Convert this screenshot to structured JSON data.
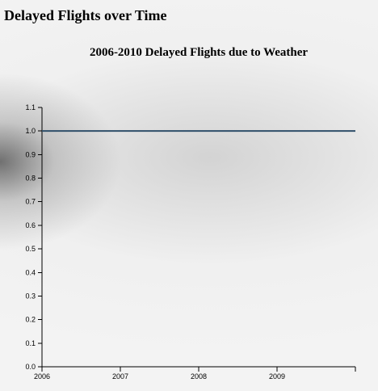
{
  "page": {
    "heading": "Delayed Flights over Time"
  },
  "chart_data": {
    "type": "line",
    "title": "2006-2010 Delayed Flights due to Weather",
    "xlabel": "",
    "ylabel": "",
    "x": [
      "2006",
      "2007",
      "2008",
      "2009",
      "2010"
    ],
    "x_tick_labels": [
      "2006",
      "2007",
      "2008",
      "2009"
    ],
    "series": [
      {
        "values": [
          1.0,
          1.0,
          1.0,
          1.0,
          1.0
        ],
        "color": "#2f4f6a"
      }
    ],
    "ylim": [
      0,
      1.1
    ],
    "y_tick_labels": [
      "0.0",
      "0.1",
      "0.2",
      "0.3",
      "0.4",
      "0.5",
      "0.6",
      "0.7",
      "0.8",
      "0.9",
      "1.0",
      "1.1"
    ],
    "grid": false,
    "legend": "none"
  }
}
